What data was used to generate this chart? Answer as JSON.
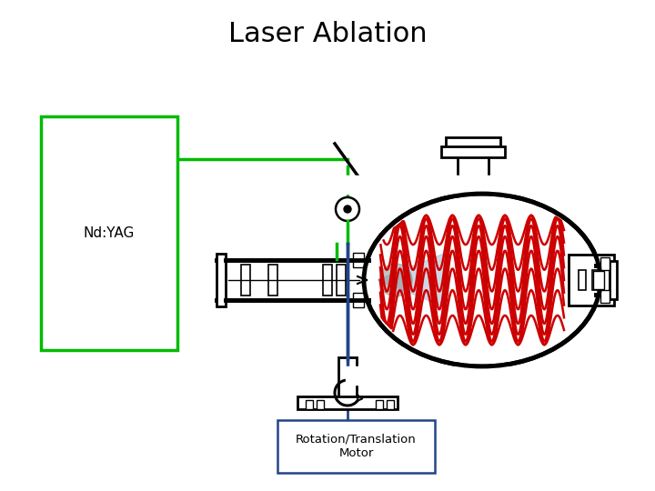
{
  "title": "Laser Ablation",
  "title_fontsize": 22,
  "bg_color": "#ffffff",
  "laser_label": "Nd:YAG",
  "motor_label": "Rotation/Translation\nMotor",
  "green_color": "#00bb00",
  "black_color": "#000000",
  "blue_color": "#3366aa",
  "dark_blue_color": "#224488",
  "red_color": "#cc0000",
  "gray_color": "#999999",
  "lw_heavy": 3.5,
  "lw_medium": 2.0,
  "lw_light": 1.5
}
